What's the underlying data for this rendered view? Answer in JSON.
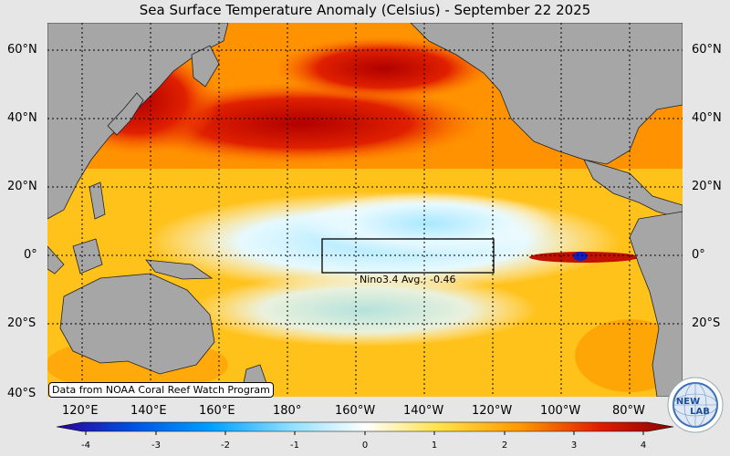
{
  "title": "Sea Surface Temperature Anomaly (Celsius) - September 22 2025",
  "lat_labels": [
    "60°N",
    "40°N",
    "20°N",
    "0°",
    "20°S",
    "40°S"
  ],
  "lon_labels": [
    "120°E",
    "140°E",
    "160°E",
    "180°",
    "160°W",
    "140°W",
    "120°W",
    "100°W",
    "80°W"
  ],
  "colorbar": {
    "ticks": [
      "-4",
      "-3",
      "-2",
      "-1",
      "0",
      "1",
      "2",
      "3",
      "4"
    ],
    "range": [
      -4,
      4
    ],
    "colors": [
      "#2a0096",
      "#0050e0",
      "#00a0ff",
      "#8fe0ff",
      "#ffffff",
      "#ffe24a",
      "#ff9a00",
      "#e01e00",
      "#8a0000"
    ]
  },
  "nino_box": {
    "label": "Nino3.4 Avg.: -0.46"
  },
  "credit": "Data from NOAA Coral Reef Watch Program",
  "logo": {
    "text_top": "NEW",
    "text_bottom": "LAB"
  },
  "colors": {
    "land": "#a6a6a6",
    "ocean_warm": "#ffb400",
    "ocean_hot": "#d82000",
    "ocean_cool": "#ccf2ff"
  }
}
